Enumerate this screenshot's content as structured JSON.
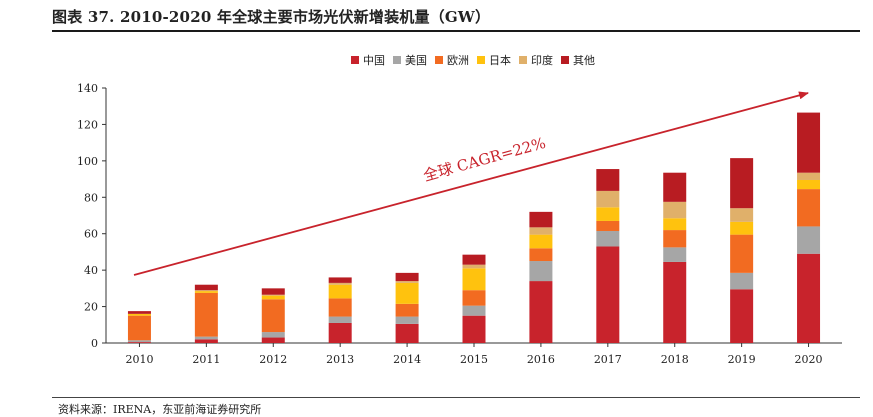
{
  "title": "图表 37. 2010-2020 年全球主要市场光伏新增装机量（GW）",
  "source": "资料来源：IRENA，东亚前海证券研究所",
  "chart_data": {
    "type": "bar",
    "stacked": true,
    "categories": [
      "2010",
      "2011",
      "2012",
      "2013",
      "2014",
      "2015",
      "2016",
      "2017",
      "2018",
      "2019",
      "2020"
    ],
    "series": [
      {
        "name": "中国",
        "color": "#C8232C",
        "values": [
          0.5,
          2.0,
          3.0,
          11.0,
          10.5,
          15.0,
          34.0,
          53.0,
          44.5,
          29.5,
          49.0
        ]
      },
      {
        "name": "美国",
        "color": "#A6A6A6",
        "values": [
          1.0,
          1.5,
          3.0,
          3.5,
          4.0,
          5.5,
          11.0,
          8.5,
          8.0,
          9.0,
          15.0
        ]
      },
      {
        "name": "欧洲",
        "color": "#F26B21",
        "values": [
          13.5,
          24.0,
          18.0,
          10.0,
          7.0,
          8.5,
          7.0,
          5.5,
          9.5,
          21.0,
          20.5
        ]
      },
      {
        "name": "日本",
        "color": "#FFC20E",
        "values": [
          1.0,
          1.0,
          2.0,
          7.5,
          11.5,
          12.0,
          7.5,
          7.5,
          6.5,
          7.0,
          5.0
        ]
      },
      {
        "name": "印度",
        "color": "#E0B06A",
        "values": [
          0.0,
          0.5,
          0.5,
          1.0,
          1.0,
          2.0,
          4.0,
          9.0,
          9.0,
          7.5,
          4.0
        ]
      },
      {
        "name": "其他",
        "color": "#B81C22",
        "values": [
          1.5,
          3.0,
          3.5,
          3.0,
          4.5,
          5.5,
          8.5,
          12.0,
          16.0,
          27.5,
          33.0
        ]
      }
    ],
    "ylim": [
      0,
      140
    ],
    "yticks": [
      0,
      20,
      40,
      60,
      80,
      100,
      120,
      140
    ],
    "xlabel": "",
    "ylabel": "",
    "legend_position": "top-center",
    "grid": false,
    "annotation": {
      "text": "全球 CAGR=22%",
      "color": "#C8232C"
    }
  }
}
